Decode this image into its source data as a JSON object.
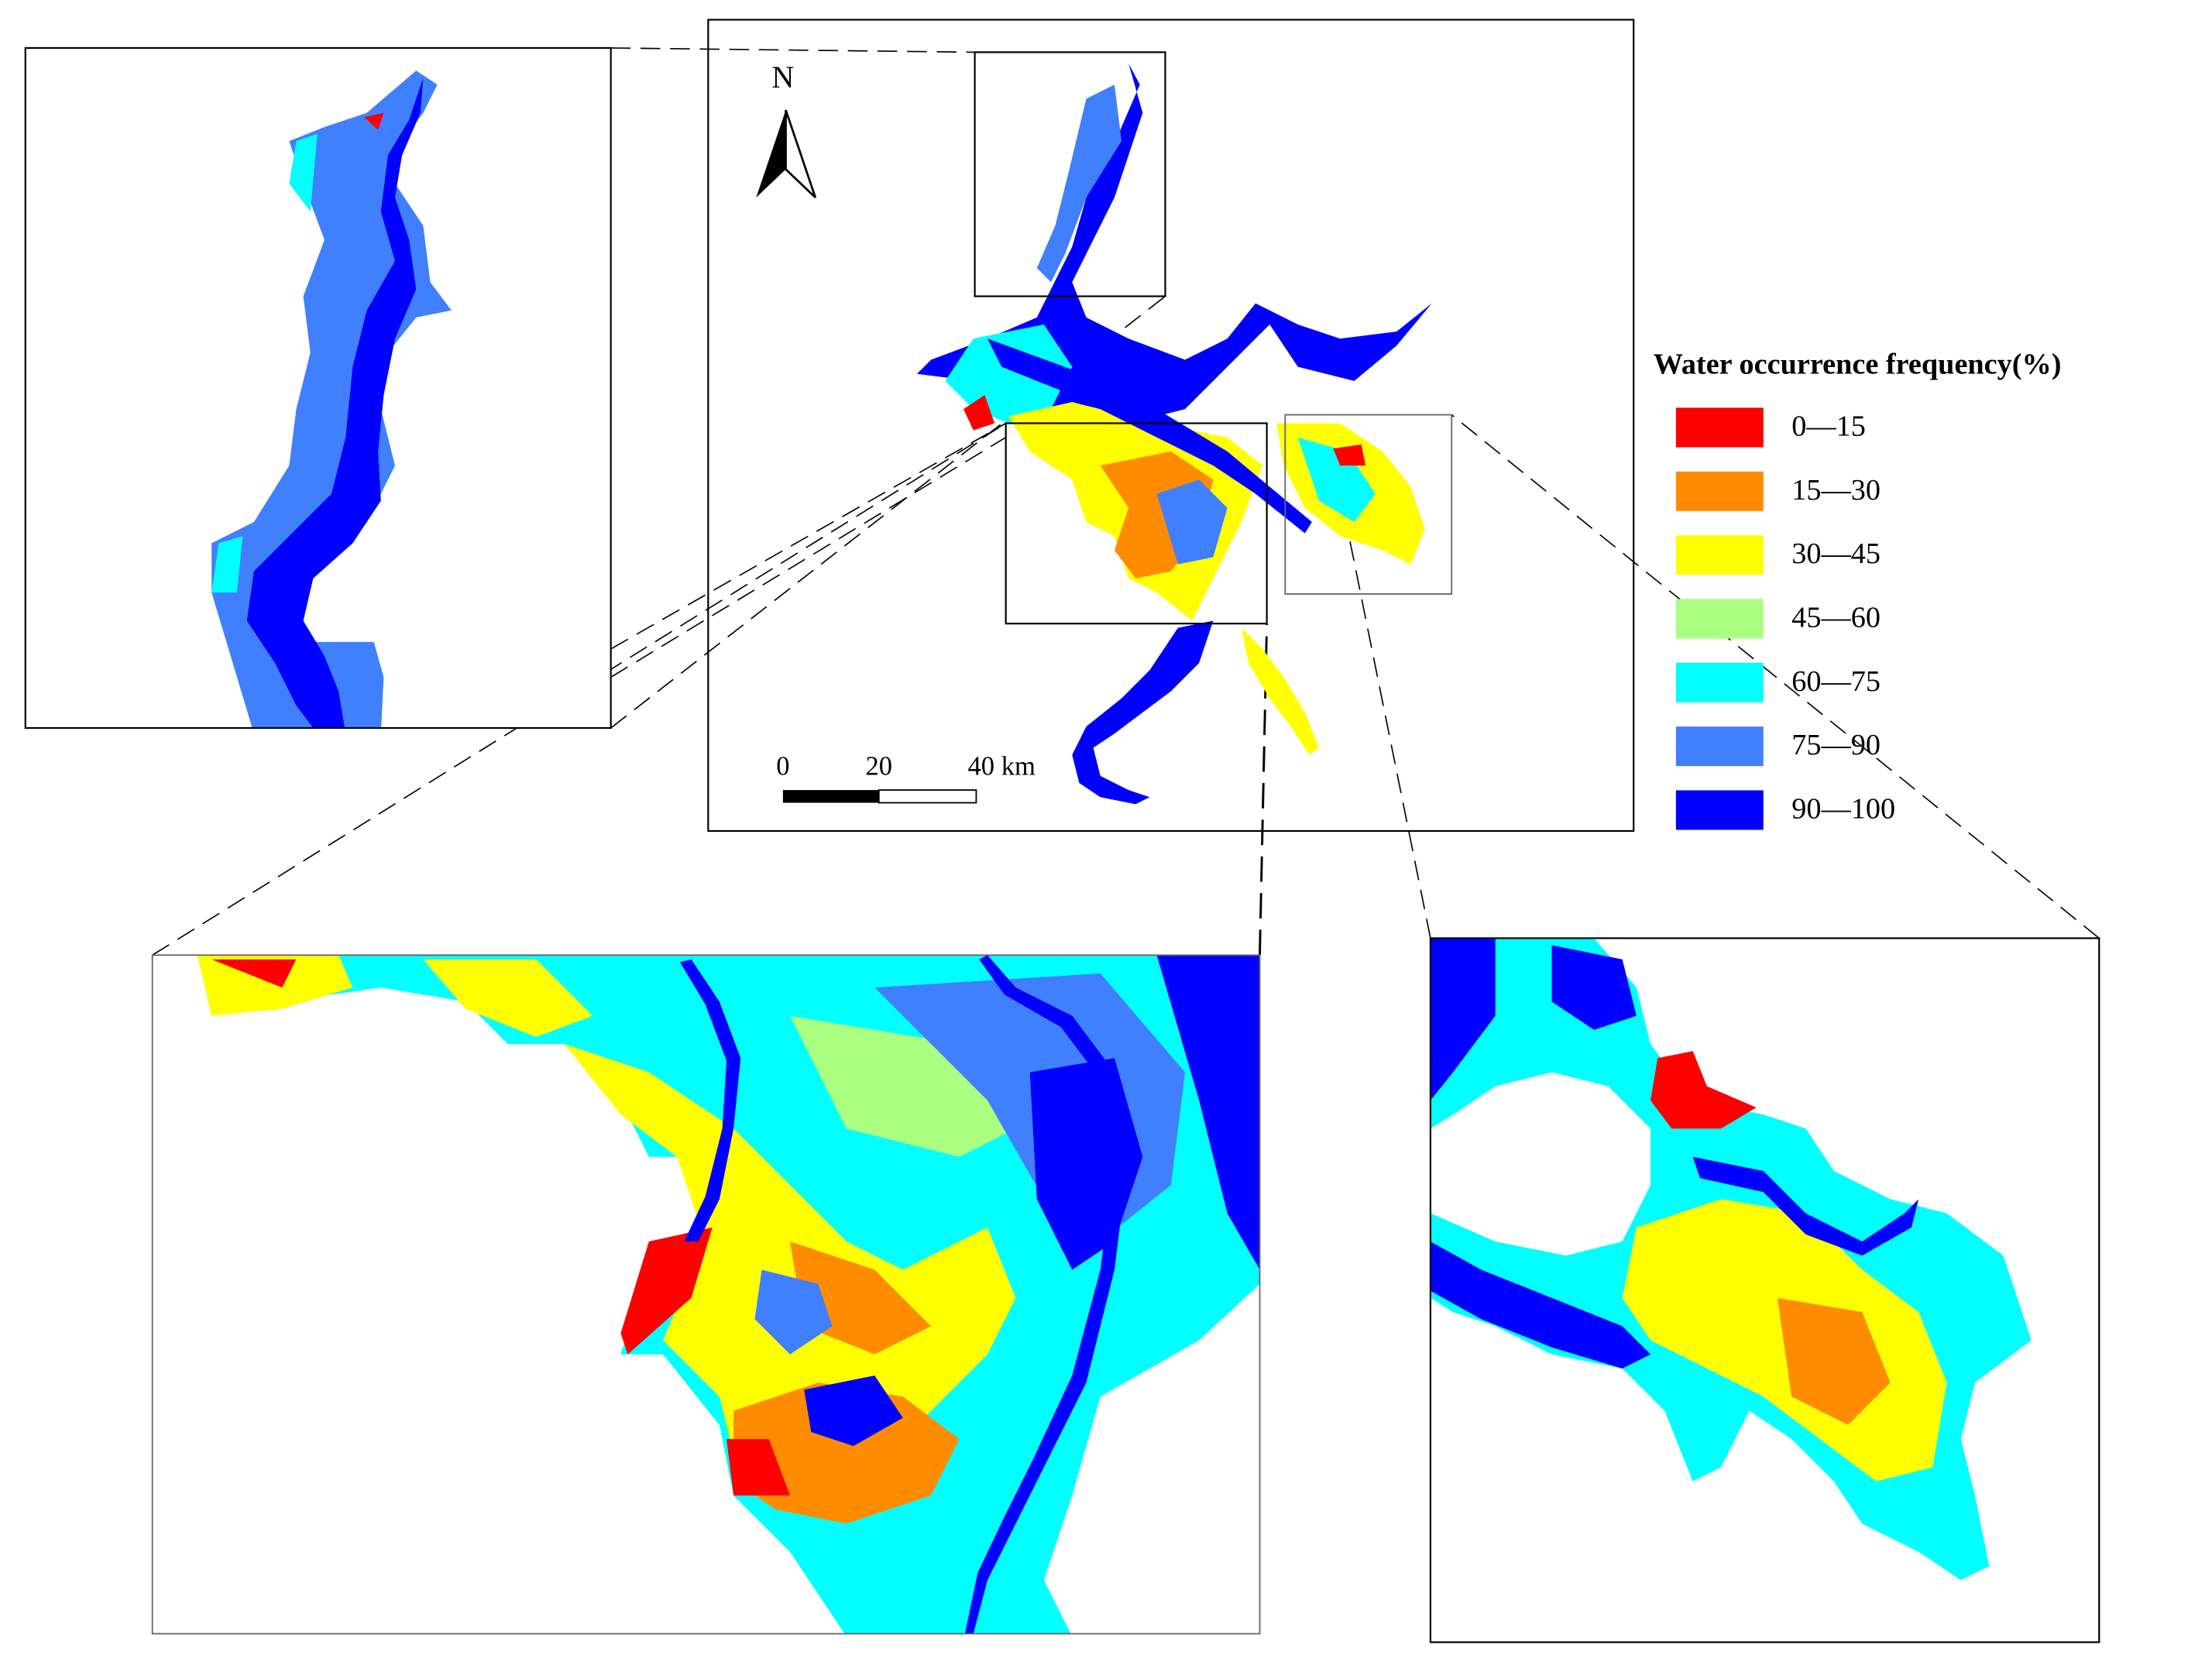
{
  "north_label": "N",
  "scale_bar": {
    "labels": [
      "0",
      "20",
      "40 km"
    ]
  },
  "legend": {
    "title": "Water occurrence frequency(%)",
    "items": [
      {
        "label": "0—15",
        "color": "#ff0000"
      },
      {
        "label": "15—30",
        "color": "#ff8c00"
      },
      {
        "label": "30—45",
        "color": "#ffff00"
      },
      {
        "label": "45—60",
        "color": "#aaff80"
      },
      {
        "label": "60—75",
        "color": "#00ffff"
      },
      {
        "label": "75—90",
        "color": "#4080ff"
      },
      {
        "label": "90—100",
        "color": "#0000ff"
      }
    ]
  }
}
